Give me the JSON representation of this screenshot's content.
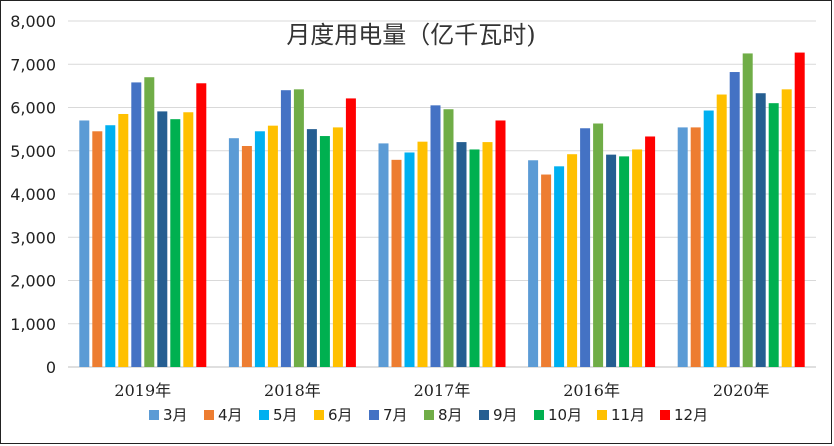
{
  "chart_data": {
    "type": "bar",
    "title": "月度用电量（亿千瓦时)",
    "categories": [
      "2019年",
      "2018年",
      "2017年",
      "2016年",
      "2020年"
    ],
    "ylim": [
      0,
      8000
    ],
    "yticks": [
      0,
      1000,
      2000,
      3000,
      4000,
      5000,
      6000,
      7000,
      8000
    ],
    "ytick_labels": [
      "0",
      "1,000",
      "2,000",
      "3,000",
      "4,000",
      "5,000",
      "6,000",
      "7,000",
      "8,000"
    ],
    "grid": true,
    "legend_position": "bottom",
    "series": [
      {
        "name": "3月",
        "color": "#5B9BD5",
        "values": [
          5700,
          5290,
          5170,
          4780,
          5540
        ]
      },
      {
        "name": "4月",
        "color": "#ED7D31",
        "values": [
          5450,
          5110,
          4790,
          4450,
          5540
        ]
      },
      {
        "name": "5月",
        "color": "#00B0F0",
        "values": [
          5590,
          5450,
          4960,
          4640,
          5930
        ]
      },
      {
        "name": "6月",
        "color": "#FFC000",
        "values": [
          5850,
          5580,
          5210,
          4920,
          6300
        ]
      },
      {
        "name": "7月",
        "color": "#4472C4",
        "values": [
          6580,
          6400,
          6050,
          5520,
          6820
        ]
      },
      {
        "name": "8月",
        "color": "#70AD47",
        "values": [
          6700,
          6420,
          5960,
          5630,
          7250
        ]
      },
      {
        "name": "9月",
        "color": "#255E91",
        "values": [
          5910,
          5500,
          5200,
          4910,
          6330
        ]
      },
      {
        "name": "10月",
        "color": "#00B050",
        "values": [
          5730,
          5340,
          5030,
          4870,
          6100
        ]
      },
      {
        "name": "11月",
        "color": "#FFC000",
        "values": [
          5890,
          5540,
          5200,
          5030,
          6420
        ]
      },
      {
        "name": "12月",
        "color": "#FF0000",
        "values": [
          6560,
          6210,
          5700,
          5330,
          7270
        ]
      }
    ]
  }
}
